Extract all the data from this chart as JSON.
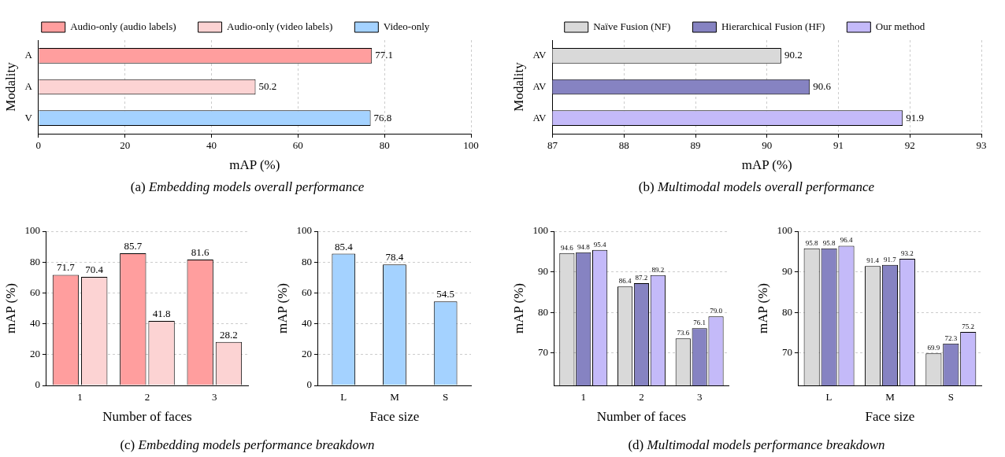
{
  "chart_data": [
    {
      "type": "bar",
      "orientation": "horizontal",
      "categories": [
        "A",
        "A",
        "V"
      ],
      "series": [
        {
          "name": "Audio-only (audio labels)",
          "color": "#ff9e9e",
          "values": [
            77.1,
            null,
            null
          ]
        },
        {
          "name": "Audio-only (video labels)",
          "color": "#fcd3d3",
          "values": [
            null,
            50.2,
            null
          ]
        },
        {
          "name": "Video-only",
          "color": "#a4d2ff",
          "values": [
            null,
            null,
            76.8
          ]
        }
      ],
      "xlim": [
        0,
        100
      ],
      "xticks": [
        0,
        20,
        40,
        60,
        80,
        100
      ],
      "xlabel": "mAP (%)",
      "ylabel": "Modality",
      "grid": "x",
      "legend": "top",
      "data_labels": true,
      "annotations": [
        "(a) Embedding models overall performance"
      ]
    },
    {
      "type": "bar",
      "orientation": "horizontal",
      "categories": [
        "AV",
        "AV",
        "AV"
      ],
      "series": [
        {
          "name": "Naïve Fusion (NF)",
          "color": "#d9d9d9",
          "values": [
            90.2,
            null,
            null
          ]
        },
        {
          "name": "Hierarchical Fusion (HF)",
          "color": "#8683c2",
          "values": [
            null,
            90.6,
            null
          ]
        },
        {
          "name": "Our method",
          "color": "#c4baf9",
          "values": [
            null,
            null,
            91.9
          ]
        }
      ],
      "xlim": [
        87,
        93
      ],
      "xticks": [
        87,
        88,
        89,
        90,
        91,
        92,
        93
      ],
      "xlabel": "mAP (%)",
      "ylabel": "Modality",
      "grid": "x",
      "legend": "top",
      "data_labels": true,
      "annotations": [
        "(b) Multimodal models overall performance"
      ]
    },
    {
      "type": "bar",
      "categories": [
        "1",
        "2",
        "3"
      ],
      "series": [
        {
          "color": "#ff9e9e",
          "values": [
            71.7,
            85.7,
            81.6
          ]
        },
        {
          "color": "#fcd3d3",
          "values": [
            70.4,
            41.8,
            28.2
          ]
        }
      ],
      "ylim": [
        0,
        100
      ],
      "yticks": [
        0,
        20,
        40,
        60,
        80,
        100
      ],
      "xlabel": "Number of faces",
      "ylabel": "mAP (%)",
      "grid": "y",
      "data_labels": true,
      "annotations": [
        "(c) Embedding models performance breakdown"
      ]
    },
    {
      "type": "bar",
      "categories": [
        "L",
        "M",
        "S"
      ],
      "series": [
        {
          "color": "#a4d2ff",
          "values": [
            85.4,
            78.4,
            54.5
          ]
        }
      ],
      "ylim": [
        0,
        100
      ],
      "yticks": [
        0,
        20,
        40,
        60,
        80,
        100
      ],
      "xlabel": "Face size",
      "ylabel": "mAP (%)",
      "grid": "y",
      "data_labels": true
    },
    {
      "type": "bar",
      "categories": [
        "1",
        "2",
        "3"
      ],
      "series": [
        {
          "color": "#d9d9d9",
          "values": [
            94.6,
            86.4,
            73.6
          ],
          "value_labels": [
            "94.6",
            "86.4",
            "73.6"
          ]
        },
        {
          "color": "#8683c2",
          "values": [
            94.8,
            87.2,
            76.1
          ],
          "value_labels": [
            "94.8",
            "87.2",
            "76.1"
          ]
        },
        {
          "color": "#c4baf9",
          "values": [
            95.4,
            89.2,
            79.0
          ],
          "value_labels": [
            "95.4",
            "89.2",
            "79.0"
          ]
        }
      ],
      "ylim": [
        62,
        100
      ],
      "yticks": [
        70,
        80,
        90,
        100
      ],
      "xlabel": "Number of faces",
      "ylabel": "mAP (%)",
      "grid": "y",
      "annotations": [
        "(d) Multimodal models performance breakdown"
      ]
    },
    {
      "type": "bar",
      "categories": [
        "L",
        "M",
        "S"
      ],
      "series": [
        {
          "color": "#d9d9d9",
          "values": [
            95.8,
            91.4,
            69.9
          ],
          "value_labels": [
            "95.8",
            "91.4",
            "69.9"
          ]
        },
        {
          "color": "#8683c2",
          "values": [
            95.8,
            91.7,
            72.3
          ],
          "value_labels": [
            "95.8",
            "91.7",
            "72.3"
          ]
        },
        {
          "color": "#c4baf9",
          "values": [
            96.4,
            93.2,
            75.2
          ],
          "value_labels": [
            "96.4",
            "93.2",
            "75.2"
          ]
        }
      ],
      "ylim": [
        62,
        100
      ],
      "yticks": [
        70,
        80,
        90,
        100
      ],
      "xlabel": "Face size",
      "ylabel": "mAP (%)",
      "grid": "y"
    }
  ]
}
